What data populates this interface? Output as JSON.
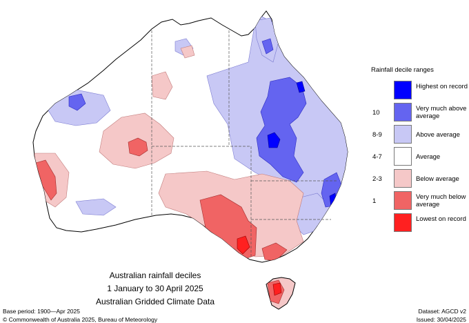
{
  "title_lines": [
    "Australian rainfall deciles",
    "1 January to 30 April 2025",
    "Australian Gridded Climate Data"
  ],
  "legend": {
    "title": "Rainfall decile ranges",
    "items": [
      {
        "label": "Highest on record",
        "decile": "",
        "color": "#0000ff"
      },
      {
        "label": "Very much above average",
        "decile": "10",
        "color": "#6464f0"
      },
      {
        "label": "Above average",
        "decile": "8-9",
        "color": "#c8c8f5"
      },
      {
        "label": "Average",
        "decile": "4-7",
        "color": "#ffffff"
      },
      {
        "label": "Below average",
        "decile": "2-3",
        "color": "#f5c8c8"
      },
      {
        "label": "Very much below average",
        "decile": "1",
        "color": "#f06464"
      },
      {
        "label": "Lowest on record",
        "decile": "",
        "color": "#ff2020"
      }
    ]
  },
  "footer": {
    "base_period": "Base period: 1900—Apr 2025",
    "dataset": "Dataset: AGCD v2",
    "copyright": "© Commonwealth of Australia 2025, Bureau of Meteorology",
    "issued": "Issued: 30/04/2025"
  }
}
